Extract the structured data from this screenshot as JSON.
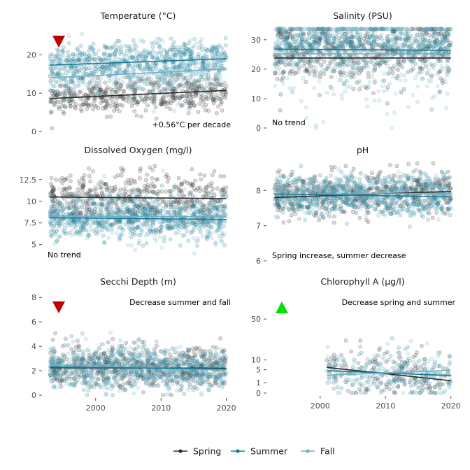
{
  "chart_data": {
    "type": "scatter",
    "legend": {
      "placement": "bottom"
    },
    "series": [
      {
        "name": "Spring",
        "color": "#2b2b2b"
      },
      {
        "name": "Summer",
        "color": "#1a7a94"
      },
      {
        "name": "Fall",
        "color": "#6fb0c2"
      }
    ],
    "x_ticks": [
      "2000",
      "2010",
      "2020"
    ],
    "panels": [
      {
        "title": "Temperature (°C)",
        "xlim": [
          1992,
          2021
        ],
        "ylim": [
          0,
          27
        ],
        "yscale": "linear",
        "y_ticks": [
          {
            "v": 0,
            "label": "0"
          },
          {
            "v": 10,
            "label": "10"
          },
          {
            "v": 20,
            "label": "20"
          }
        ],
        "annotation": "+0.56°C per decade",
        "annotation_anchor": "end",
        "marker": "down",
        "cloud": [
          {
            "series": "Spring",
            "center": [
              8.5,
              10.5
            ],
            "spread": 2.2,
            "x_start": 1993
          },
          {
            "series": "Fall",
            "center": [
              14,
              16
            ],
            "spread": 3.5,
            "x_start": 1993
          },
          {
            "series": "Summer",
            "center": [
              17.5,
              19
            ],
            "spread": 2.5,
            "x_start": 1993
          }
        ],
        "lines": [
          {
            "series": "Spring",
            "x": [
              1993,
              2020
            ],
            "y": [
              8.6,
              10.7
            ]
          },
          {
            "series": "Fall",
            "x": [
              1993,
              2020
            ],
            "y": [
              14.0,
              16.3
            ]
          },
          {
            "series": "Summer",
            "x": [
              1993,
              2020
            ],
            "y": [
              17.3,
              19.0
            ]
          }
        ]
      },
      {
        "title": "Salinity (PSU)",
        "xlim": [
          1992,
          2021
        ],
        "ylim": [
          0,
          34
        ],
        "yscale": "linear",
        "y_ticks": [
          {
            "v": 0,
            "label": "0"
          },
          {
            "v": 10,
            "label": "10"
          },
          {
            "v": 20,
            "label": "20"
          },
          {
            "v": 30,
            "label": "30"
          }
        ],
        "annotation": "No trend",
        "annotation_anchor": "start",
        "marker": "none",
        "cloud": [
          {
            "series": "Spring",
            "center": [
              26,
              26
            ],
            "spread": 6,
            "x_start": 1993
          },
          {
            "series": "Summer",
            "center": [
              28.5,
              28.5
            ],
            "spread": 3.5,
            "x_start": 1993
          },
          {
            "series": "Fall",
            "center": [
              26,
              26
            ],
            "spread": 9,
            "x_start": 1993
          }
        ],
        "lines": [
          {
            "series": "Spring",
            "x": [
              1993,
              2020
            ],
            "y": [
              23.8,
              23.8
            ]
          },
          {
            "series": "Fall",
            "x": [
              1993,
              2020
            ],
            "y": [
              25.2,
              25.2
            ]
          },
          {
            "series": "Summer",
            "x": [
              1993,
              2020
            ],
            "y": [
              26.8,
              26.4
            ]
          }
        ]
      },
      {
        "title": "Dissolved Oxygen (mg/l)",
        "xlim": [
          1992,
          2021
        ],
        "ylim": [
          3.2,
          14.5
        ],
        "yscale": "linear",
        "y_ticks": [
          {
            "v": 5,
            "label": "5"
          },
          {
            "v": 7.5,
            "label": "7.5"
          },
          {
            "v": 10,
            "label": "10"
          },
          {
            "v": 12.5,
            "label": "12.5"
          }
        ],
        "annotation": "No trend",
        "annotation_anchor": "start",
        "marker": "none",
        "cloud": [
          {
            "series": "Spring",
            "center": [
              10.4,
              10.3
            ],
            "spread": 1.5,
            "x_start": 1993
          },
          {
            "series": "Fall",
            "center": [
              8.3,
              8.2
            ],
            "spread": 1.4,
            "x_start": 1993
          },
          {
            "series": "Summer",
            "center": [
              8.0,
              7.9
            ],
            "spread": 1.3,
            "x_start": 1993
          }
        ],
        "lines": [
          {
            "series": "Spring",
            "x": [
              1993,
              2020
            ],
            "y": [
              10.5,
              10.3
            ]
          },
          {
            "series": "Fall",
            "x": [
              1993,
              2020
            ],
            "y": [
              8.3,
              8.2
            ]
          },
          {
            "series": "Summer",
            "x": [
              1993,
              2020
            ],
            "y": [
              8.1,
              7.9
            ]
          }
        ]
      },
      {
        "title": "pH",
        "xlim": [
          1992,
          2021
        ],
        "ylim": [
          6,
          8.8
        ],
        "yscale": "linear",
        "y_ticks": [
          {
            "v": 6,
            "label": "6"
          },
          {
            "v": 7,
            "label": "7"
          },
          {
            "v": 8,
            "label": "8"
          }
        ],
        "annotation": "Spring increase, summer decrease",
        "annotation_anchor": "start",
        "marker": "none",
        "cloud": [
          {
            "series": "Spring",
            "center": [
              7.85,
              8.0
            ],
            "spread": 0.3,
            "x_start": 1993
          },
          {
            "series": "Summer",
            "center": [
              7.85,
              7.85
            ],
            "spread": 0.3,
            "x_start": 1993
          },
          {
            "series": "Fall",
            "center": [
              7.9,
              7.9
            ],
            "spread": 0.25,
            "x_start": 1993
          }
        ],
        "lines": [
          {
            "series": "Spring",
            "x": [
              1993,
              2020
            ],
            "y": [
              7.8,
              7.97
            ]
          },
          {
            "series": "Fall",
            "x": [
              1993,
              2020
            ],
            "y": [
              7.88,
              7.92
            ]
          },
          {
            "series": "Summer",
            "x": [
              1993,
              2020
            ],
            "y": [
              7.9,
              7.82
            ]
          }
        ]
      },
      {
        "title": "Secchi Depth (m)",
        "xlim": [
          1992,
          2021
        ],
        "ylim": [
          0,
          8.3
        ],
        "yscale": "linear",
        "y_ticks": [
          {
            "v": 0,
            "label": "0"
          },
          {
            "v": 2,
            "label": "2"
          },
          {
            "v": 4,
            "label": "4"
          },
          {
            "v": 6,
            "label": "6"
          },
          {
            "v": 8,
            "label": "8"
          }
        ],
        "annotation": "Decrease summer and fall",
        "annotation_anchor": "end",
        "marker": "down",
        "cloud": [
          {
            "series": "Spring",
            "center": [
              2.4,
              2.3
            ],
            "spread": 0.9,
            "x_start": 1993
          },
          {
            "series": "Summer",
            "center": [
              2.2,
              2.1
            ],
            "spread": 0.8,
            "x_start": 1993
          },
          {
            "series": "Fall",
            "center": [
              2.3,
              2.2
            ],
            "spread": 0.9,
            "x_start": 1993
          }
        ],
        "lines": [
          {
            "series": "Spring",
            "x": [
              1993,
              2020
            ],
            "y": [
              2.25,
              2.2
            ]
          },
          {
            "series": "Fall",
            "x": [
              1993,
              2020
            ],
            "y": [
              2.5,
              2.05
            ]
          },
          {
            "series": "Summer",
            "x": [
              1993,
              2020
            ],
            "y": [
              2.3,
              2.15
            ]
          }
        ]
      },
      {
        "title": "Chlorophyll A (µg/l)",
        "xlim": [
          1992,
          2021
        ],
        "ylim": [
          0,
          90
        ],
        "yscale": "sqrt",
        "y_ticks": [
          {
            "v": 0,
            "label": "0"
          },
          {
            "v": 1,
            "label": "1"
          },
          {
            "v": 5,
            "label": "5"
          },
          {
            "v": 10,
            "label": "10"
          },
          {
            "v": 50,
            "label": "50"
          }
        ],
        "annotation": "Decrease spring and summer",
        "annotation_anchor": "end",
        "marker": "up",
        "cloud": [
          {
            "series": "Spring",
            "center": [
              5,
              1.5
            ],
            "spread": 2.5,
            "x_start": 2001
          },
          {
            "series": "Summer",
            "center": [
              4.5,
              3
            ],
            "spread": 2.2,
            "x_start": 2001
          },
          {
            "series": "Fall",
            "center": [
              3,
              3.5
            ],
            "spread": 2.6,
            "x_start": 2001
          }
        ],
        "lines": [
          {
            "series": "Spring",
            "x": [
              2001,
              2020
            ],
            "y": [
              6.0,
              1.4
            ]
          },
          {
            "series": "Summer",
            "x": [
              2001,
              2020
            ],
            "y": [
              4.6,
              2.8
            ]
          },
          {
            "series": "Fall",
            "x": [
              2001,
              2020
            ],
            "y": [
              2.9,
              4.7
            ]
          }
        ]
      }
    ]
  }
}
